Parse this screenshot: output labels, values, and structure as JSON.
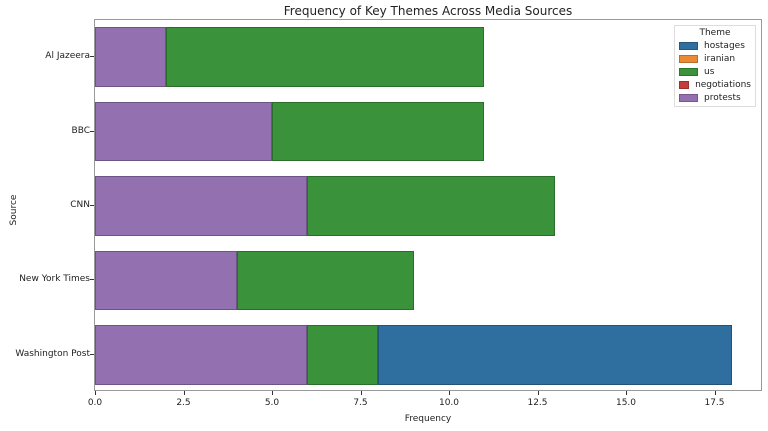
{
  "chart_data": {
    "type": "bar",
    "orientation": "horizontal",
    "stacked": true,
    "title": "Frequency of Key Themes Across Media Sources",
    "xlabel": "Frequency",
    "ylabel": "Source",
    "xlim": [
      0,
      19
    ],
    "xticks": [
      "0.0",
      "2.5",
      "5.0",
      "7.5",
      "10.0",
      "12.5",
      "15.0",
      "17.5"
    ],
    "categories": [
      "Al Jazeera",
      "BBC",
      "CNN",
      "New York Times",
      "Washington Post"
    ],
    "legend_title": "Theme",
    "legend_position": "upper right",
    "series": [
      {
        "name": "hostages",
        "color": "#2f6f9f",
        "values": [
          0,
          0,
          0,
          0,
          10
        ]
      },
      {
        "name": "iranian",
        "color": "#e88a36",
        "values": [
          0,
          0,
          0,
          0,
          0
        ]
      },
      {
        "name": "us",
        "color": "#3a923a",
        "values": [
          9,
          6,
          7,
          5,
          2
        ]
      },
      {
        "name": "negotiations",
        "color": "#c43c3c",
        "values": [
          0,
          0,
          0,
          0,
          0
        ]
      },
      {
        "name": "protests",
        "color": "#9370b0",
        "values": [
          2,
          5,
          6,
          4,
          6
        ]
      }
    ],
    "stack_order": [
      "protests",
      "us",
      "hostages"
    ],
    "grid": false
  }
}
